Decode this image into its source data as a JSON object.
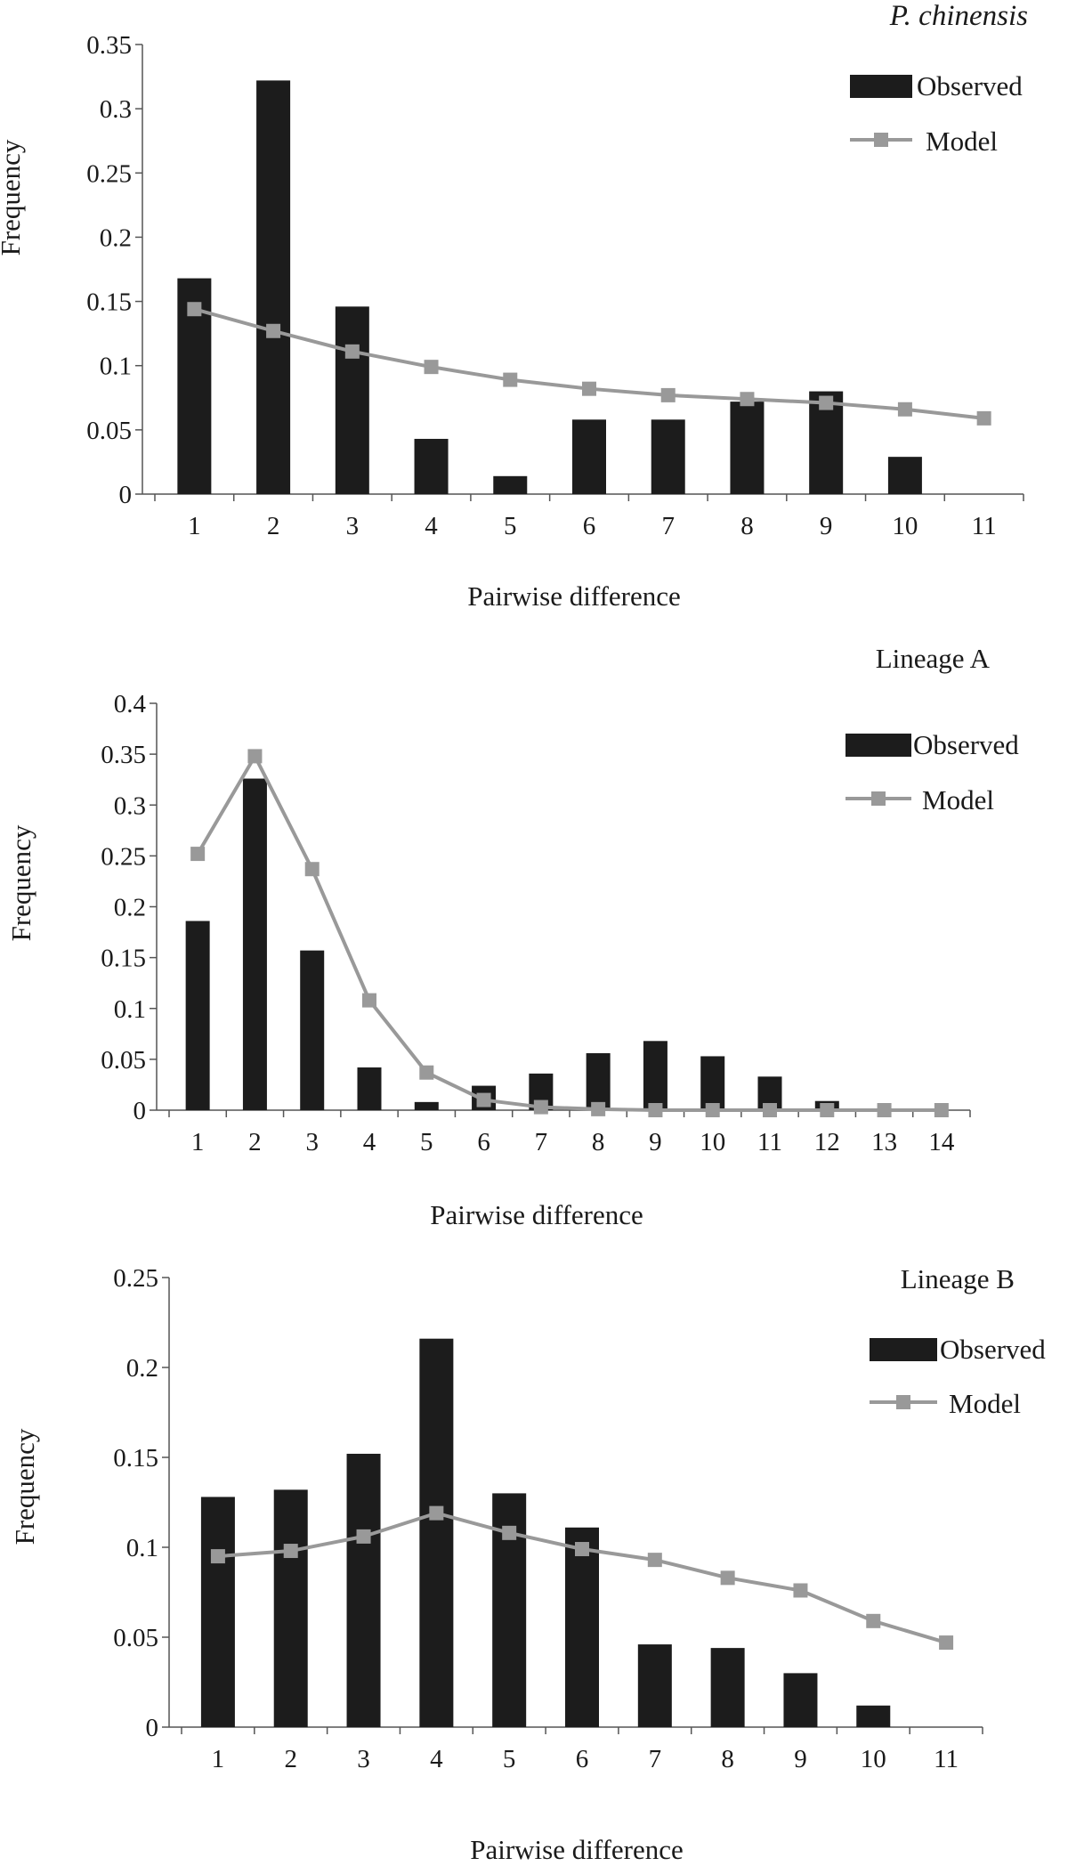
{
  "colors": {
    "observed": "#1c1c1c",
    "model": "#999999",
    "axis": "#555555",
    "text": "#1a1a1a"
  },
  "charts": [
    {
      "type": "bar",
      "title": "P. chinensis",
      "title_italic": true,
      "xlabel": "Pairwise difference",
      "ylabel": "Frequency",
      "ylim": [
        0,
        0.35
      ],
      "yticks": [
        "0",
        "0.05",
        "0.1",
        "0.15",
        "0.2",
        "0.25",
        "0.3",
        "0.35"
      ],
      "legend_position": "top-right",
      "categories": [
        "1",
        "2",
        "3",
        "4",
        "5",
        "6",
        "7",
        "8",
        "9",
        "10",
        "11"
      ],
      "series": [
        {
          "name": "Observed",
          "kind": "bar",
          "values": [
            0.168,
            0.322,
            0.146,
            0.043,
            0.014,
            0.058,
            0.058,
            0.072,
            0.08,
            0.029,
            null
          ]
        },
        {
          "name": "Model",
          "kind": "line",
          "values": [
            0.144,
            0.127,
            0.111,
            0.099,
            0.089,
            0.082,
            0.077,
            0.074,
            0.071,
            0.066,
            0.059
          ]
        }
      ]
    },
    {
      "type": "bar",
      "title": "Lineage A",
      "title_italic": false,
      "xlabel": "Pairwise difference",
      "ylabel": "Frequency",
      "ylim": [
        0,
        0.4
      ],
      "yticks": [
        "0",
        "0.05",
        "0.1",
        "0.15",
        "0.2",
        "0.25",
        "0.3",
        "0.35",
        "0.4"
      ],
      "legend_position": "top-right",
      "categories": [
        "1",
        "2",
        "3",
        "4",
        "5",
        "6",
        "7",
        "8",
        "9",
        "10",
        "11",
        "12",
        "13",
        "14"
      ],
      "series": [
        {
          "name": "Observed",
          "kind": "bar",
          "values": [
            0.186,
            0.326,
            0.157,
            0.042,
            0.008,
            0.024,
            0.036,
            0.056,
            0.068,
            0.053,
            0.033,
            0.009,
            null,
            null
          ]
        },
        {
          "name": "Model",
          "kind": "line",
          "values": [
            0.252,
            0.348,
            0.237,
            0.108,
            0.037,
            0.01,
            0.003,
            0.001,
            0.0,
            0.0,
            0.0,
            0.0,
            0.0,
            0.0
          ]
        }
      ]
    },
    {
      "type": "bar",
      "title": "Lineage B",
      "title_italic": false,
      "xlabel": "Pairwise difference",
      "ylabel": "Frequency",
      "ylim": [
        0,
        0.25
      ],
      "yticks": [
        "0",
        "0.05",
        "0.1",
        "0.15",
        "0.2",
        "0.25"
      ],
      "legend_position": "top-right",
      "categories": [
        "1",
        "2",
        "3",
        "4",
        "5",
        "6",
        "7",
        "8",
        "9",
        "10",
        "11"
      ],
      "series": [
        {
          "name": "Observed",
          "kind": "bar",
          "values": [
            0.128,
            0.132,
            0.152,
            0.216,
            0.13,
            0.111,
            0.046,
            0.044,
            0.03,
            0.012,
            null
          ]
        },
        {
          "name": "Model",
          "kind": "line",
          "values": [
            0.095,
            0.098,
            0.106,
            0.119,
            0.108,
            0.099,
            0.093,
            0.083,
            0.076,
            0.059,
            0.047
          ]
        }
      ]
    }
  ]
}
